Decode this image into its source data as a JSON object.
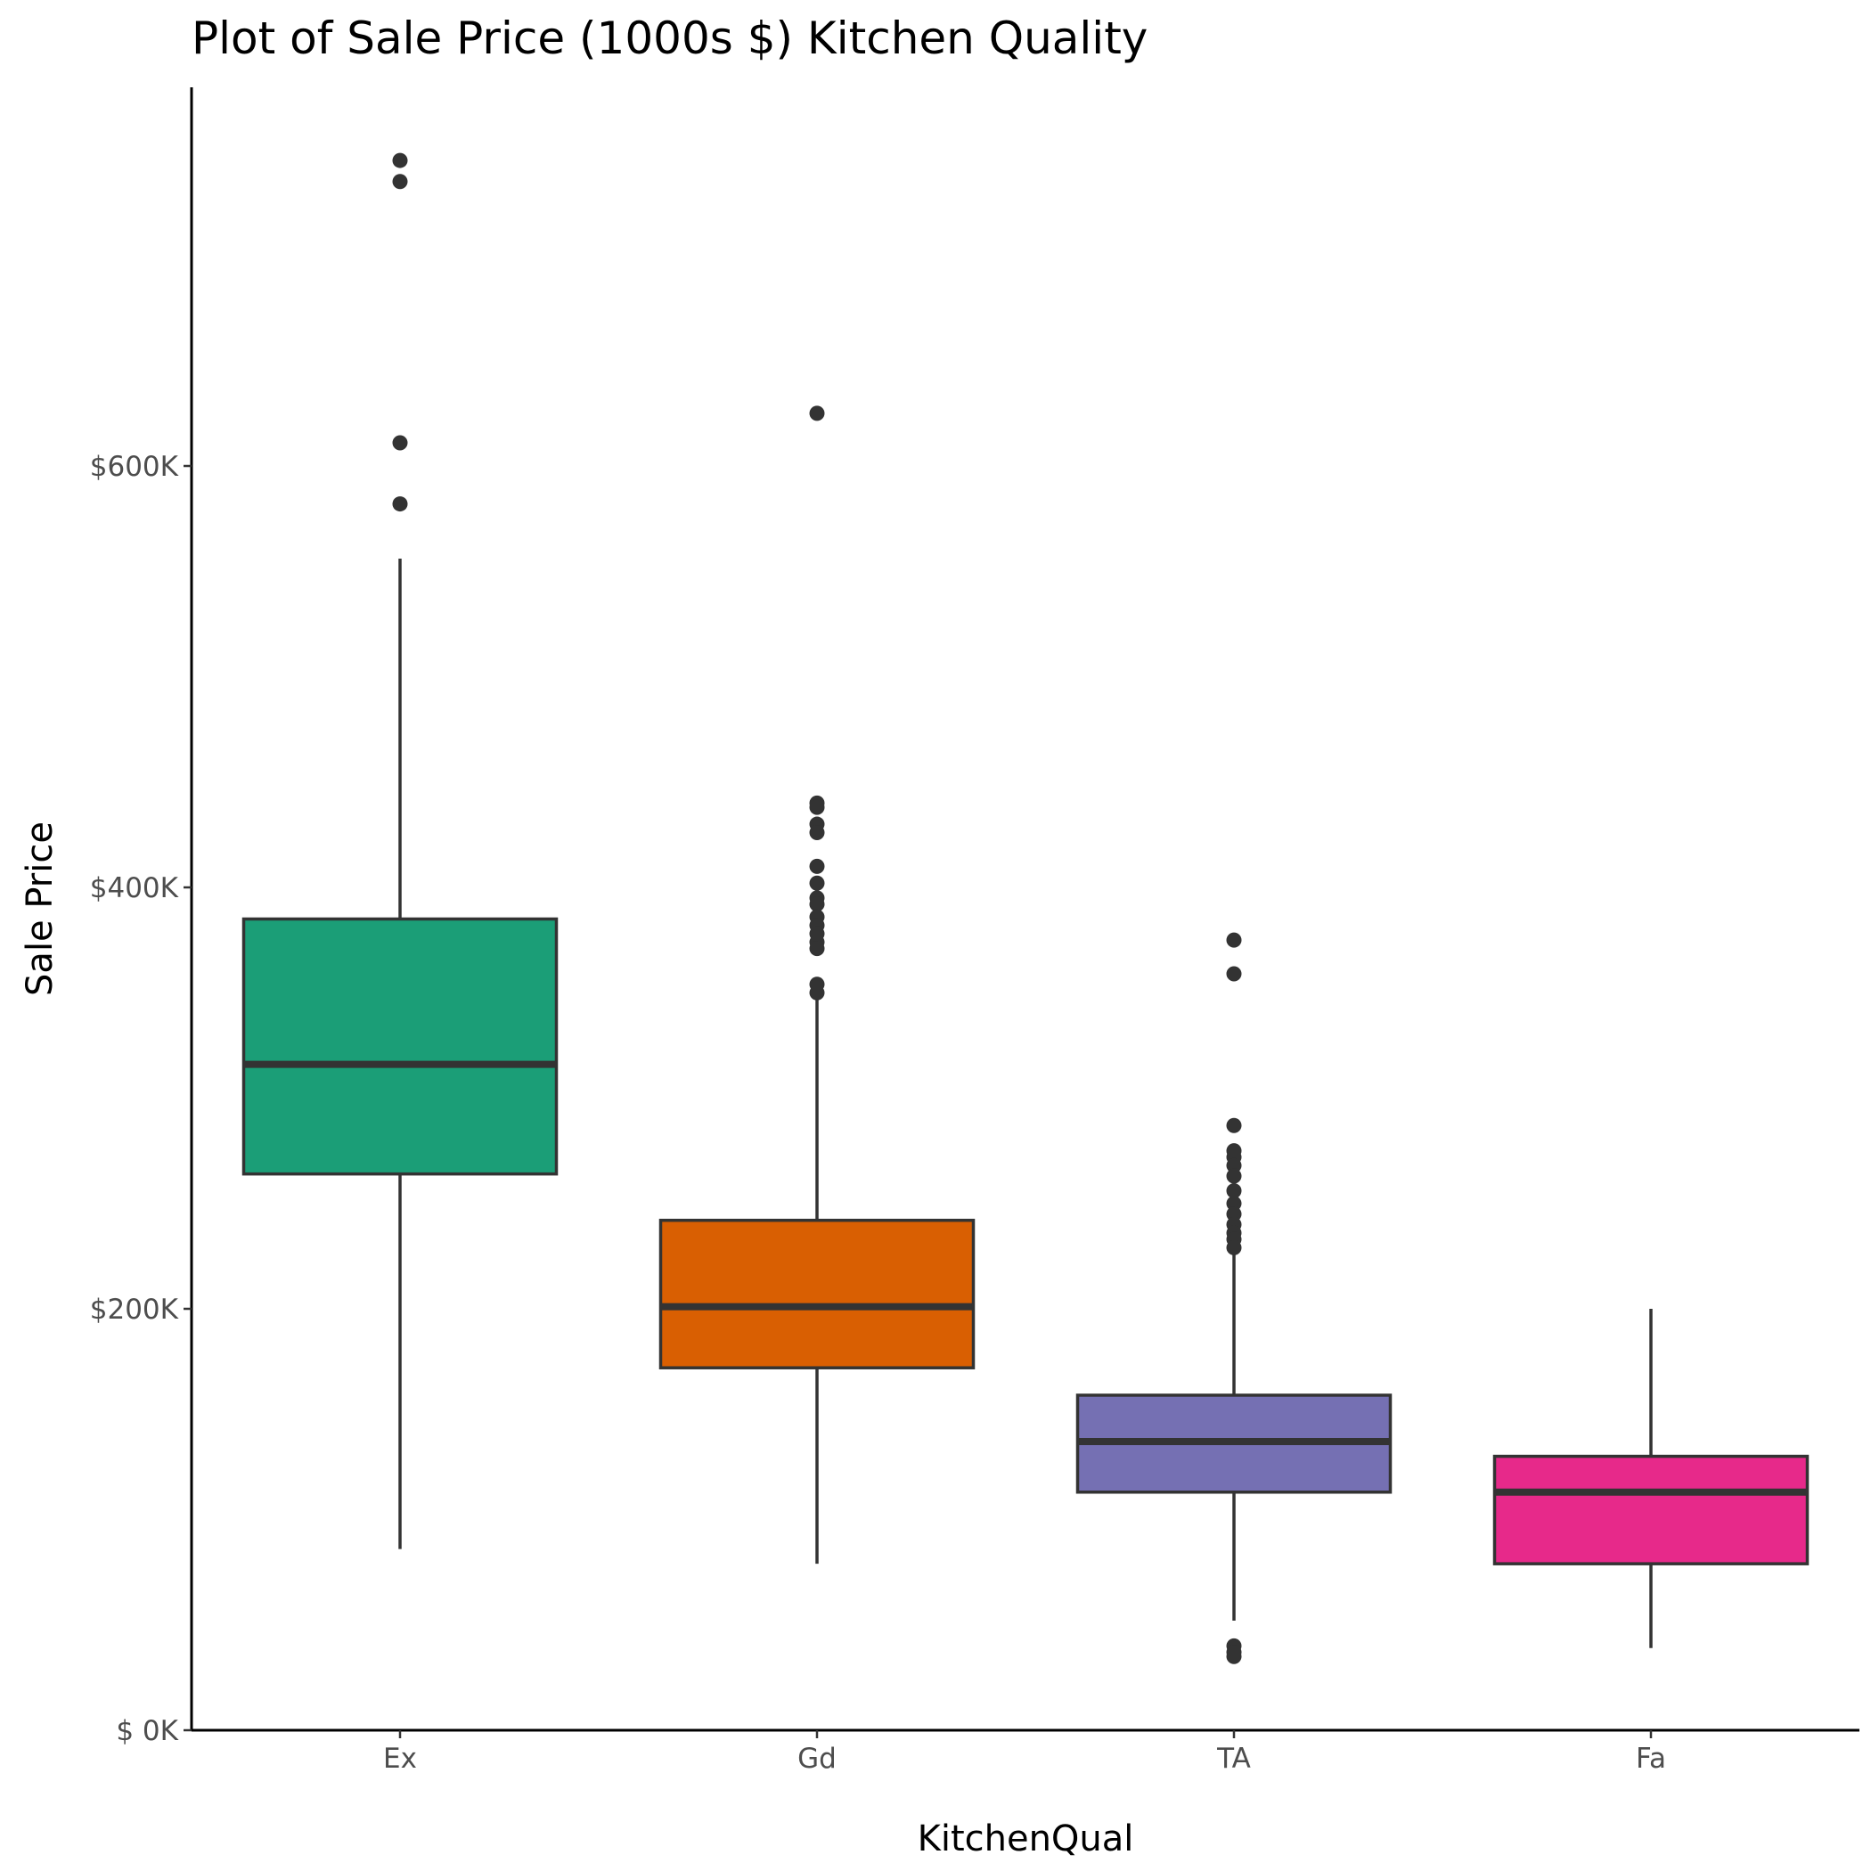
{
  "chart_data": {
    "type": "boxplot",
    "title": "Plot of Sale Price (1000s $) Kitchen Quality",
    "xlabel": "KitchenQual",
    "ylabel": "Sale Price",
    "ylim": [
      0,
      755
    ],
    "yticks": [
      {
        "value": 0,
        "label": "$  0K"
      },
      {
        "value": 200,
        "label": "$200K"
      },
      {
        "value": 400,
        "label": "$400K"
      },
      {
        "value": 600,
        "label": "$600K"
      }
    ],
    "grid": false,
    "legend": "none",
    "categories": [
      "Ex",
      "Gd",
      "TA",
      "Fa"
    ],
    "boxes": [
      {
        "category": "Ex",
        "color": "#1b9e77",
        "whisker_low": 86,
        "q1": 264,
        "median": 316,
        "q3": 385,
        "whisker_high": 556,
        "outliers": [
          745,
          735,
          611,
          582
        ]
      },
      {
        "category": "Gd",
        "color": "#d95f02",
        "whisker_low": 79,
        "q1": 172,
        "median": 201,
        "q3": 242,
        "whisker_high": 350,
        "outliers": [
          625,
          440,
          438,
          430,
          426,
          410,
          402,
          395,
          392,
          386,
          382,
          378,
          374,
          371,
          354,
          350
        ]
      },
      {
        "category": "TA",
        "color": "#7570b3",
        "whisker_low": 52,
        "q1": 113,
        "median": 137,
        "q3": 159,
        "whisker_high": 228,
        "outliers": [
          375,
          359,
          287,
          275,
          272,
          268,
          263,
          256,
          250,
          245,
          240,
          236,
          233,
          229,
          40,
          37,
          35
        ]
      },
      {
        "category": "Fa",
        "color": "#e7298a",
        "whisker_low": 39,
        "q1": 79,
        "median": 113,
        "q3": 130,
        "whisker_high": 200,
        "outliers": []
      }
    ]
  }
}
